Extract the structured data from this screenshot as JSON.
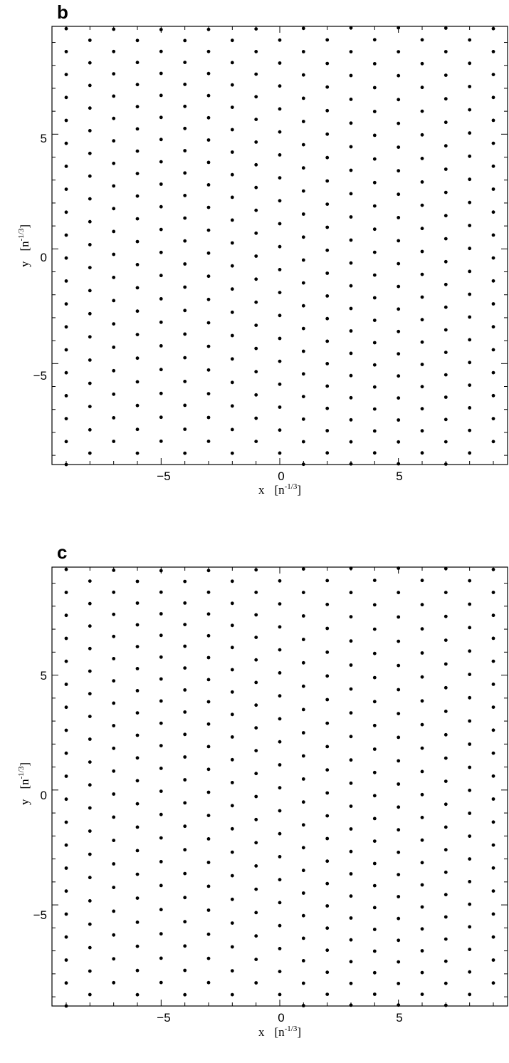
{
  "chart_data": [
    {
      "type": "scatter",
      "panel_label": "b",
      "xlabel": "x",
      "xlabel_unit": "[n",
      "xlabel_exp": "-1/3",
      "xlabel_close": "]",
      "ylabel": "y",
      "ylabel_unit": "[n",
      "ylabel_exp": "-1/3",
      "ylabel_close": "]",
      "xlim": [
        -9.6,
        9.6
      ],
      "ylim": [
        -9.4,
        9.7
      ],
      "major_ticks": [
        -5,
        0,
        5
      ],
      "major_tick_labels": [
        "−5",
        "0",
        "5"
      ],
      "grid": false,
      "lattice": {
        "columns_x_from": -9,
        "columns_x_to": 9,
        "column_spacing": 1.0,
        "row_spacing": 1.0,
        "odd_column_offset": 0.5,
        "y_from": -9.4,
        "y_to": 9.6,
        "note_wave": 0.25
      }
    },
    {
      "type": "scatter",
      "panel_label": "c",
      "xlabel": "x",
      "xlabel_unit": "[n",
      "xlabel_exp": "-1/3",
      "xlabel_close": "]",
      "ylabel": "y",
      "ylabel_unit": "[n",
      "ylabel_exp": "-1/3",
      "ylabel_close": "]",
      "xlim": [
        -9.6,
        9.6
      ],
      "ylim": [
        -9.4,
        9.7
      ],
      "major_ticks": [
        -5,
        0,
        5
      ],
      "major_tick_labels": [
        "−5",
        "0",
        "5"
      ],
      "grid": false,
      "lattice": {
        "columns_x_from": -9,
        "columns_x_to": 9,
        "column_spacing": 1.0,
        "row_spacing": 1.0,
        "odd_column_offset": 0.5,
        "y_from": -9.4,
        "y_to": 9.6,
        "note_wave": 0.35
      }
    }
  ]
}
